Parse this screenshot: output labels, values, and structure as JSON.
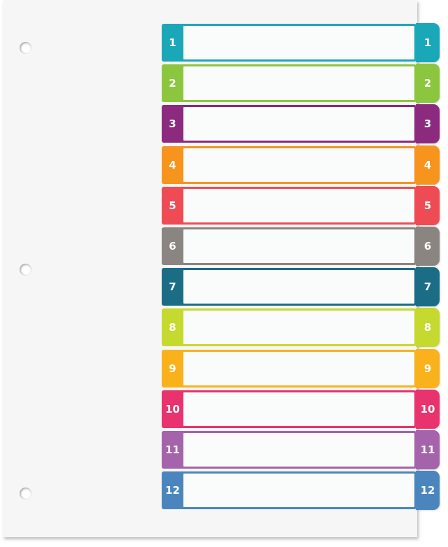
{
  "dividers": [
    {
      "label": "1",
      "color": "#1aa7b8"
    },
    {
      "label": "2",
      "color": "#8cc63f"
    },
    {
      "label": "3",
      "color": "#8b2a7f"
    },
    {
      "label": "4",
      "color": "#f7941d"
    },
    {
      "label": "5",
      "color": "#ef4b54"
    },
    {
      "label": "6",
      "color": "#8a8580"
    },
    {
      "label": "7",
      "color": "#1a6d85"
    },
    {
      "label": "8",
      "color": "#c6d92e"
    },
    {
      "label": "9",
      "color": "#f9b21b"
    },
    {
      "label": "10",
      "color": "#e8336e"
    },
    {
      "label": "11",
      "color": "#a463ab"
    },
    {
      "label": "12",
      "color": "#4a86bd"
    }
  ]
}
